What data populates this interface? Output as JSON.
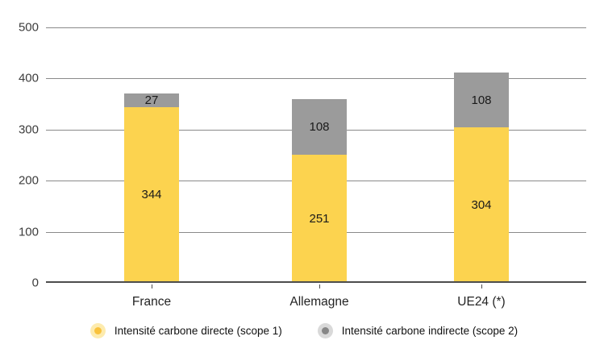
{
  "chart_data": {
    "type": "bar",
    "stacked": true,
    "title": "",
    "xlabel": "",
    "ylabel": "",
    "categories": [
      "France",
      "Allemagne",
      "UE24 (*)"
    ],
    "series": [
      {
        "name": "Intensité carbone directe (scope 1)",
        "color": "#FCD34F",
        "marker_color": "#F9C23C",
        "marker_halo": "#FDEBAE",
        "values": [
          344,
          251,
          304
        ]
      },
      {
        "name": "Intensité carbone indirecte (scope 2)",
        "color": "#9B9B9B",
        "marker_color": "#878787",
        "marker_halo": "#D9D9D9",
        "values": [
          27,
          108,
          108
        ]
      }
    ],
    "totals": [
      371,
      359,
      412
    ],
    "ylim": [
      0,
      500
    ],
    "yticks": [
      0,
      100,
      200,
      300,
      400,
      500
    ],
    "grid": true,
    "axis_colors": {
      "gridline": "#8A8A8A",
      "baseline": "#4D4D4D"
    },
    "legend_position": "bottom"
  }
}
